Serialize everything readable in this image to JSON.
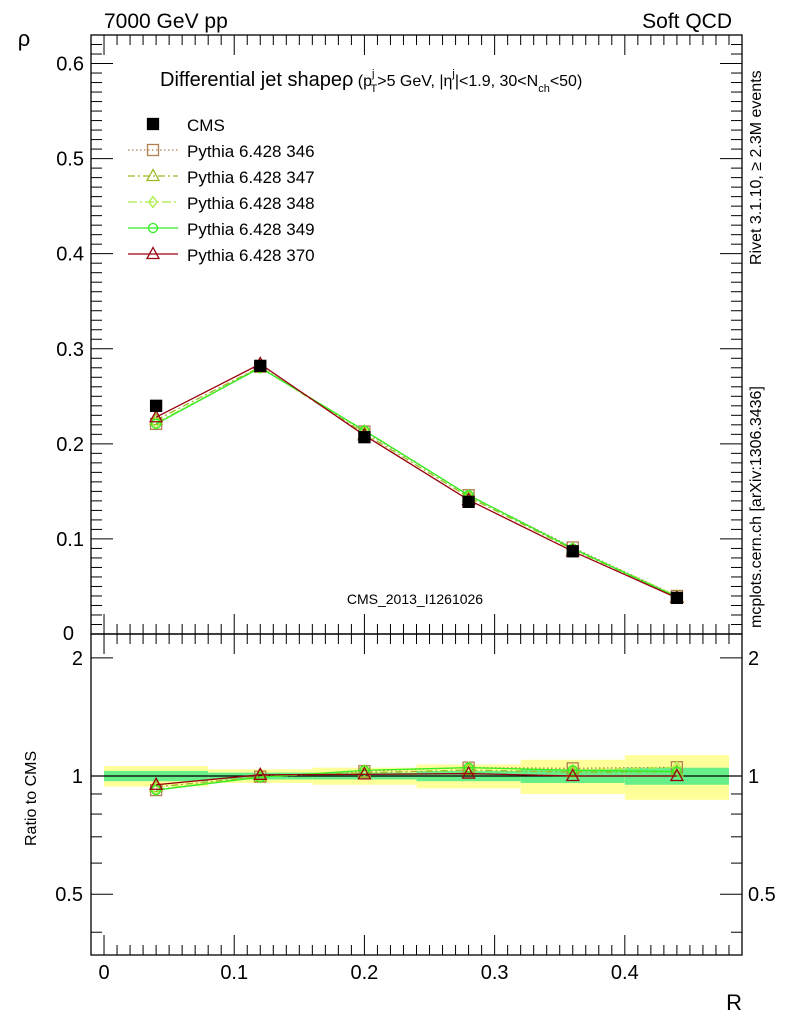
{
  "header": {
    "left": "7000 GeV pp",
    "right": "Soft QCD"
  },
  "side_labels": {
    "rivet": "Rivet 3.1.10, ≥ 2.3M events",
    "source": "mcplots.cern.ch [arXiv:1306.3436]"
  },
  "chart_data": {
    "type": "line",
    "title": "Differential jet shapeρ (p_T^j>5 GeV, |η^j|<1.9, 30<N_ch<50)",
    "title_parts": {
      "main": "Differential jet shape",
      "rho": "ρ",
      "open": " (p",
      "ptsup": "j",
      "ptsub": "T",
      "ptcut": ">5 GeV, |",
      "eta": "η",
      "etasup": "j",
      "etacut": "|<1.9, 30<N",
      "nsub": "ch",
      "close": "<50)"
    },
    "watermark": "CMS_2013_I1261026",
    "xlabel": "R",
    "ylabel": "ρ",
    "ratio_ylabel": "Ratio to CMS",
    "xlim": [
      -0.01,
      0.49
    ],
    "ylim": [
      0,
      0.63
    ],
    "ratio_ylim": [
      0.35,
      2.3
    ],
    "x_ticks": [
      "0",
      "0.1",
      "0.2",
      "0.3",
      "0.4"
    ],
    "y_ticks": [
      "0.1",
      "0.2",
      "0.3",
      "0.4",
      "0.5",
      "0.6"
    ],
    "y_zero_label": "0",
    "ratio_ticks": [
      "0.5",
      "1",
      "2"
    ],
    "x": [
      0.04,
      0.12,
      0.2,
      0.28,
      0.36,
      0.44
    ],
    "data": {
      "name": "CMS",
      "values": [
        0.24,
        0.282,
        0.207,
        0.139,
        0.087,
        0.038
      ],
      "color": "#000000"
    },
    "band_edges": [
      0.0,
      0.08,
      0.16,
      0.24,
      0.32,
      0.4,
      0.48
    ],
    "band_stat": [
      0.03,
      0.02,
      0.02,
      0.03,
      0.04,
      0.05
    ],
    "band_total": [
      0.06,
      0.04,
      0.05,
      0.07,
      0.1,
      0.13
    ],
    "band_colors": {
      "inner": "#66ee88",
      "outer": "#ffff99"
    },
    "series": [
      {
        "name": "Pythia 6.428 346",
        "values": [
          0.221,
          0.281,
          0.213,
          0.146,
          0.091,
          0.04
        ],
        "color": "#b08050",
        "marker": "square",
        "dash": "1.5,2.5"
      },
      {
        "name": "Pythia 6.428 347",
        "values": [
          0.225,
          0.281,
          0.211,
          0.144,
          0.089,
          0.039
        ],
        "color": "#99bb22",
        "marker": "triangle",
        "dash": "7,3,2,3"
      },
      {
        "name": "Pythia 6.428 348",
        "values": [
          0.222,
          0.28,
          0.214,
          0.146,
          0.09,
          0.04
        ],
        "color": "#aaee44",
        "marker": "diamond",
        "dash": "9,3,2,3"
      },
      {
        "name": "Pythia 6.428 349",
        "values": [
          0.221,
          0.28,
          0.214,
          0.146,
          0.09,
          0.039
        ],
        "color": "#33ee22",
        "marker": "circle",
        "dash": ""
      },
      {
        "name": "Pythia 6.428 370",
        "values": [
          0.228,
          0.284,
          0.209,
          0.141,
          0.087,
          0.038
        ],
        "color": "#990011",
        "marker": "triangle",
        "dash": ""
      }
    ]
  }
}
